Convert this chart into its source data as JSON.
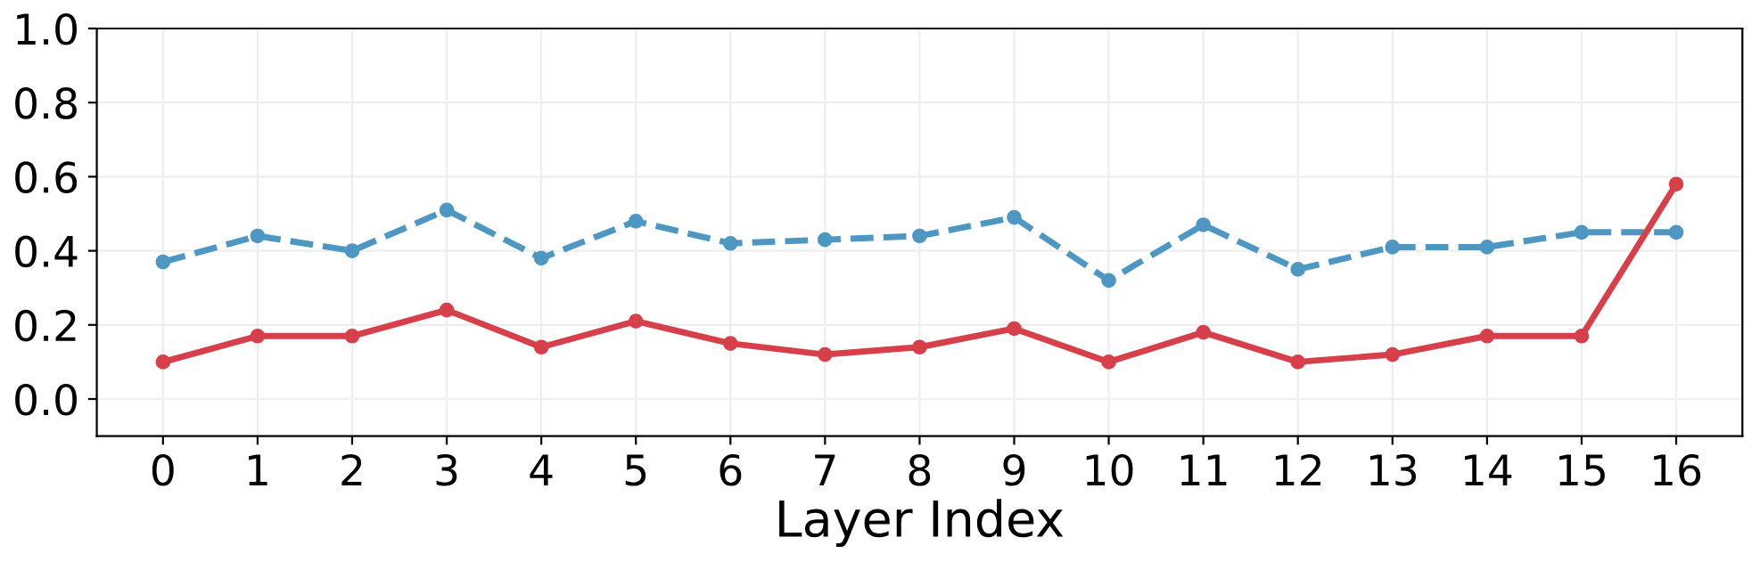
{
  "chart_data": {
    "type": "line",
    "xlabel": "Layer Index",
    "categories": [
      "0",
      "1",
      "2",
      "3",
      "4",
      "5",
      "6",
      "7",
      "8",
      "9",
      "10",
      "11",
      "12",
      "13",
      "14",
      "15",
      "16"
    ],
    "series": [
      {
        "color": "#4e97c2",
        "line_style": "dashed",
        "values": [
          0.37,
          0.44,
          0.4,
          0.51,
          0.38,
          0.48,
          0.42,
          0.43,
          0.44,
          0.49,
          0.32,
          0.47,
          0.35,
          0.41,
          0.41,
          0.45,
          0.45
        ]
      },
      {
        "color": "#d6404a",
        "line_style": "solid",
        "values": [
          0.1,
          0.17,
          0.17,
          0.24,
          0.14,
          0.21,
          0.15,
          0.12,
          0.14,
          0.19,
          0.1,
          0.18,
          0.1,
          0.12,
          0.17,
          0.17,
          0.58
        ]
      }
    ],
    "ylim": [
      -0.1,
      1.0
    ],
    "yticks": [
      {
        "value": 0,
        "label": "0.0"
      },
      {
        "value": 0.2,
        "label": "0.2"
      },
      {
        "value": 0.4,
        "label": "0.4"
      },
      {
        "value": 0.6,
        "label": "0.6"
      },
      {
        "value": 0.8,
        "label": "0.8"
      },
      {
        "value": 1,
        "label": "1.0"
      }
    ],
    "grid": true,
    "marker": "circle",
    "legend": false
  }
}
